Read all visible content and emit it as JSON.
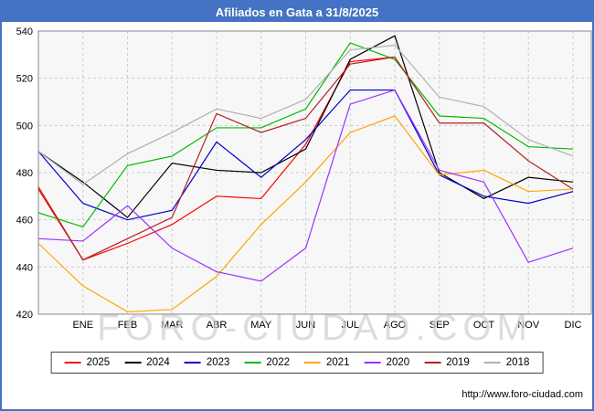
{
  "title": "Afiliados en Gata a 31/8/2025",
  "footer_url": "http://www.foro-ciudad.com",
  "watermark": "FORO-CIUDAD.COM",
  "colors": {
    "titlebar_bg": "#4472c4",
    "page_border": "#4472c4",
    "plot_bg": "#f7f7f7",
    "grid": "#cccccc",
    "plot_border": "#888888",
    "axis_text": "#000000",
    "watermark": "#cfcfcf"
  },
  "chart_data": {
    "type": "line",
    "title": "Afiliados en Gata a 31/8/2025",
    "categories": [
      "ENE",
      "FEB",
      "MAR",
      "ABR",
      "MAY",
      "JUN",
      "JUL",
      "AGO",
      "SEP",
      "OCT",
      "NOV",
      "DIC"
    ],
    "note": "Each series has 13 points: the first point sits on the left axis before the ENE tick, followed by one point per month tick. 2025 data ends at AGO (31/8/2025).",
    "ylim": [
      420,
      540
    ],
    "y_ticks": [
      420,
      440,
      460,
      480,
      500,
      520,
      540
    ],
    "grid": true,
    "legend_position": "bottom",
    "series": [
      {
        "name": "2025",
        "color": "#ff0000",
        "values": [
          473,
          443,
          450,
          458,
          470,
          469,
          492,
          527,
          529,
          null,
          null,
          null,
          null
        ]
      },
      {
        "name": "2024",
        "color": "#000000",
        "values": [
          489,
          476,
          461,
          484,
          481,
          480,
          490,
          528,
          538,
          480,
          469,
          478,
          476
        ]
      },
      {
        "name": "2023",
        "color": "#0000cc",
        "values": [
          489,
          467,
          460,
          464,
          493,
          478,
          494,
          515,
          515,
          479,
          470,
          467,
          472
        ]
      },
      {
        "name": "2022",
        "color": "#00bb00",
        "values": [
          463,
          457,
          483,
          487,
          499,
          499,
          507,
          535,
          528,
          504,
          503,
          491,
          490
        ]
      },
      {
        "name": "2021",
        "color": "#ffa500",
        "values": [
          450,
          432,
          421,
          422,
          436,
          458,
          476,
          497,
          504,
          479,
          481,
          472,
          473
        ]
      },
      {
        "name": "2020",
        "color": "#9933ff",
        "values": [
          452,
          451,
          466,
          448,
          438,
          434,
          448,
          509,
          515,
          481,
          476,
          442,
          448
        ]
      },
      {
        "name": "2019",
        "color": "#b22222",
        "values": [
          474,
          443,
          452,
          461,
          505,
          497,
          503,
          526,
          529,
          501,
          501,
          485,
          473
        ]
      },
      {
        "name": "2018",
        "color": "#b0b0b0",
        "values": [
          489,
          475,
          488,
          497,
          507,
          503,
          511,
          532,
          534,
          512,
          508,
          494,
          487
        ]
      }
    ]
  }
}
